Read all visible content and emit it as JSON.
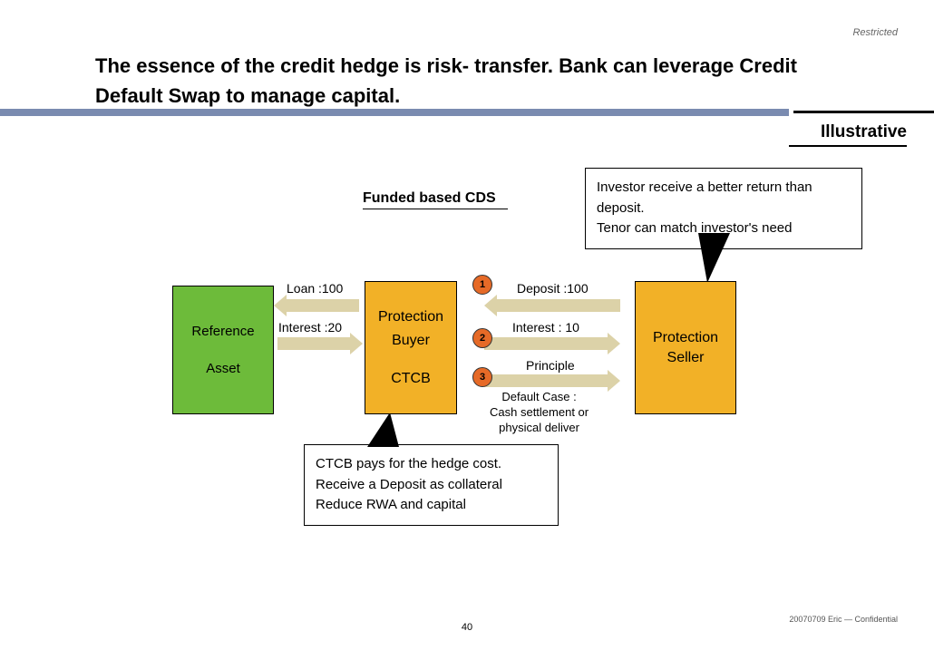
{
  "meta": {
    "restricted": "Restricted",
    "page": "40",
    "confidential": "20070709 Eric — Confidential"
  },
  "title": "The essence of  the credit hedge is risk- transfer. Bank can leverage Credit Default Swap to manage capital.",
  "tag": "Illustrative",
  "subtitle": "Funded based CDS",
  "boxes": {
    "ref": {
      "l1": "Reference",
      "l2": "Asset",
      "bg": "#6dbb3a"
    },
    "buyer": {
      "l1": "Protection",
      "l2": "Buyer",
      "l3": "CTCB",
      "bg": "#f2b127"
    },
    "seller": {
      "l1": "Protection",
      "l2": "Seller",
      "bg": "#f2b127"
    }
  },
  "labels": {
    "loan": "Loan :100",
    "int20": "Interest :20",
    "deposit": "Deposit :100",
    "int10": "Interest : 10",
    "principle": "Principle",
    "default": "Default Case :\nCash settlement or\nphysical deliver"
  },
  "steps": {
    "1": "1",
    "2": "2",
    "3": "3"
  },
  "callouts": {
    "top": [
      "Investor receive a better return than deposit.",
      "Tenor can match investor's need"
    ],
    "bot": [
      "CTCB pays for the hedge cost.",
      "Receive a Deposit as collateral",
      "Reduce RWA and capital"
    ]
  },
  "colors": {
    "arrow": "#dcd2a8",
    "circle": "#e66a27",
    "rule": "#7a8bb0"
  }
}
